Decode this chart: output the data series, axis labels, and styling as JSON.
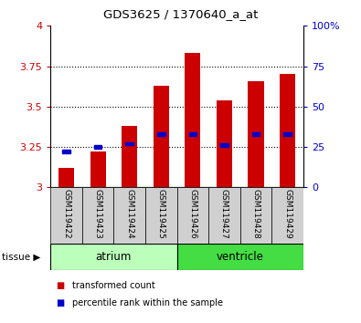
{
  "title": "GDS3625 / 1370640_a_at",
  "samples": [
    "GSM119422",
    "GSM119423",
    "GSM119424",
    "GSM119425",
    "GSM119426",
    "GSM119427",
    "GSM119428",
    "GSM119429"
  ],
  "transformed_count": [
    3.12,
    3.22,
    3.38,
    3.63,
    3.83,
    3.54,
    3.66,
    3.7
  ],
  "percentile_rank": [
    22,
    25,
    27,
    33,
    33,
    26,
    33,
    33
  ],
  "ylim_left": [
    3.0,
    4.0
  ],
  "ylim_right": [
    0,
    100
  ],
  "yticks_left": [
    3.0,
    3.25,
    3.5,
    3.75,
    4.0
  ],
  "yticks_right": [
    0,
    25,
    50,
    75,
    100
  ],
  "ytick_labels_left": [
    "3",
    "3.25",
    "3.5",
    "3.75",
    "4"
  ],
  "ytick_labels_right": [
    "0",
    "25",
    "50",
    "75",
    "100%"
  ],
  "bar_color": "#cc0000",
  "dot_color": "#0000cc",
  "bar_width": 0.5,
  "groups": [
    {
      "name": "atrium",
      "indices": [
        0,
        1,
        2,
        3
      ],
      "color": "#bbffbb"
    },
    {
      "name": "ventricle",
      "indices": [
        4,
        5,
        6,
        7
      ],
      "color": "#44dd44"
    }
  ],
  "tissue_label": "tissue",
  "legend_items": [
    {
      "label": "transformed count",
      "color": "#cc0000"
    },
    {
      "label": "percentile rank within the sample",
      "color": "#0000cc"
    }
  ],
  "grid_color": "black",
  "bg_color": "#ffffff",
  "plot_bg_color": "#ffffff",
  "label_area_color": "#d0d0d0"
}
